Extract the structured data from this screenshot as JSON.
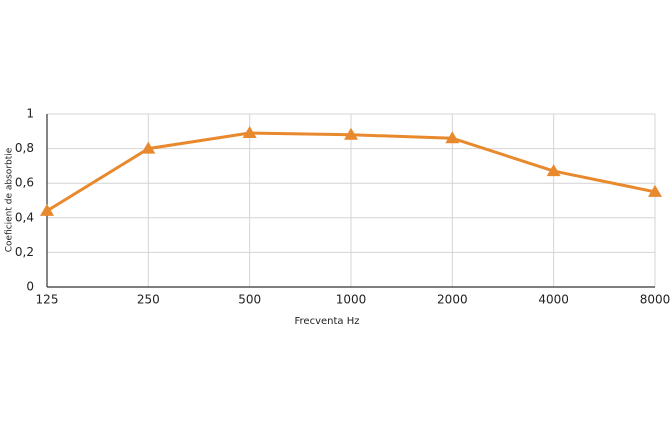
{
  "chart_data": {
    "type": "line",
    "x_label": "Frecventa Hz",
    "y_label": "Coeficient de absorbtie",
    "categories": [
      "125",
      "250",
      "500",
      "1000",
      "2000",
      "4000",
      "8000"
    ],
    "series": [
      {
        "color": "#e8892e",
        "values": [
          0.44,
          0.8,
          0.89,
          0.88,
          0.86,
          0.67,
          0.55
        ]
      }
    ],
    "ylim": [
      0,
      1
    ],
    "yticks": [
      0,
      {
        "value": 0.2,
        "label": "0,2"
      },
      {
        "value": 0.4,
        "label": "0,4"
      },
      {
        "value": 0.6,
        "label": "0,6"
      },
      {
        "value": 0.8,
        "label": "0,8"
      },
      1
    ],
    "grid": true,
    "marker": "triangle"
  }
}
